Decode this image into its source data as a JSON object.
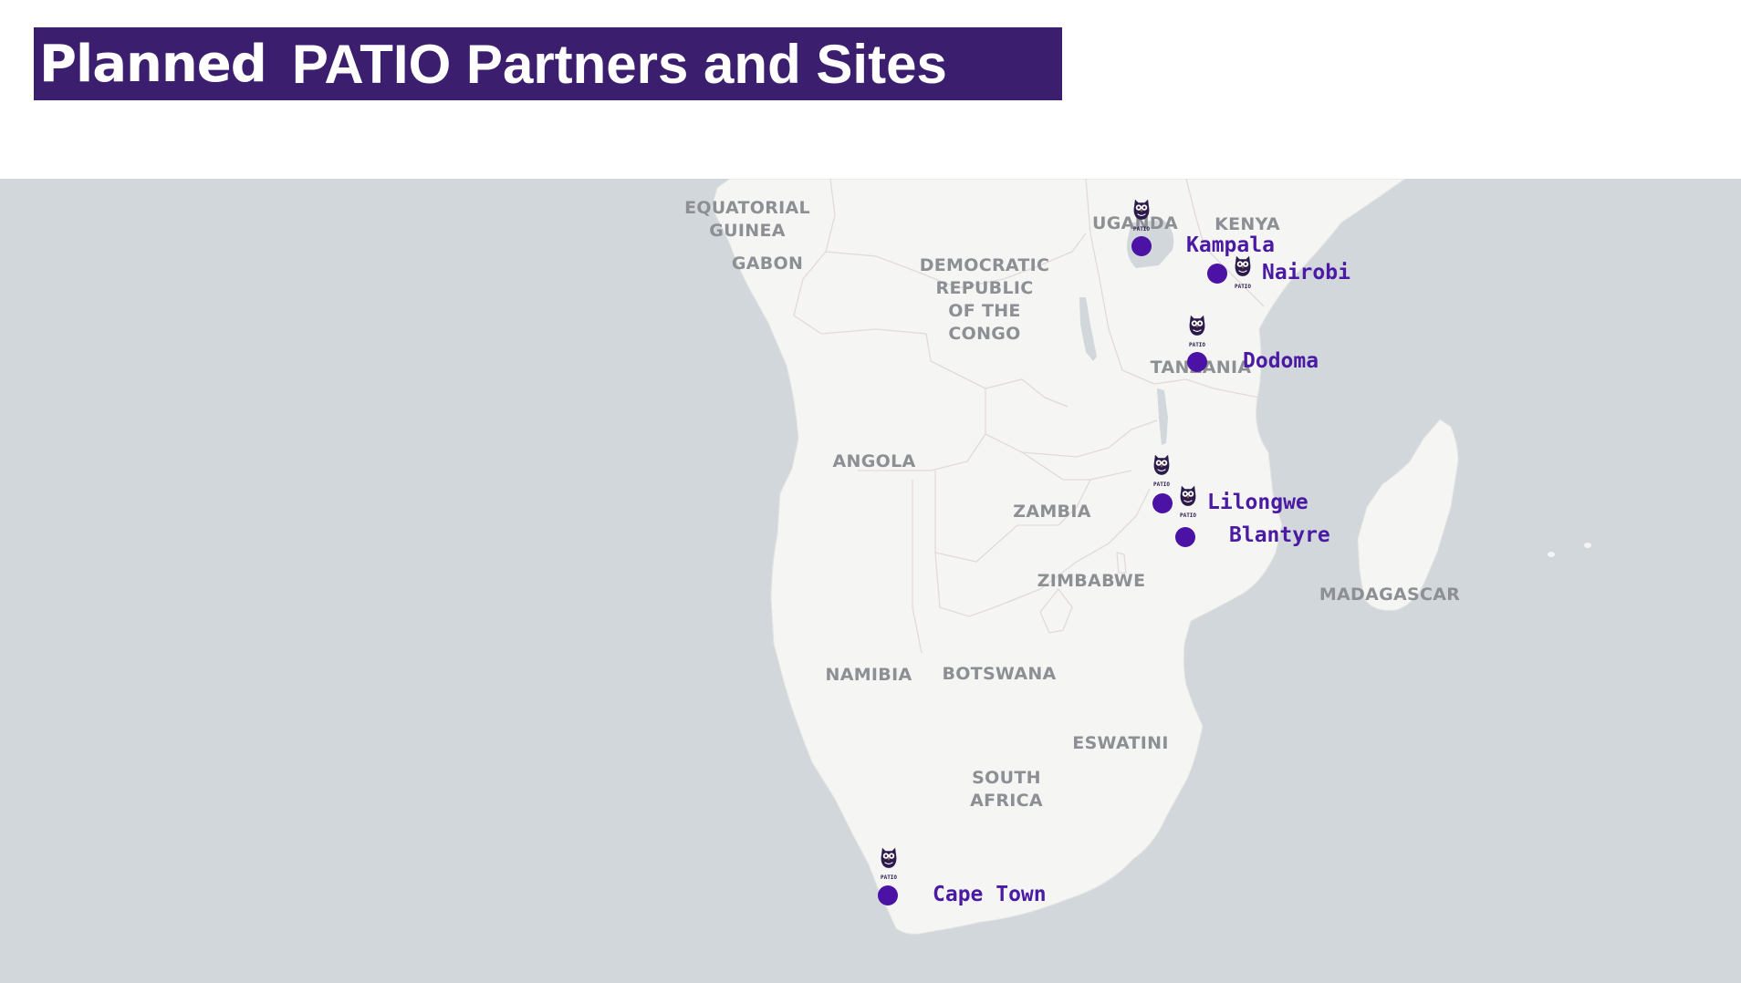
{
  "header": {
    "title_strong": "Planned",
    "title_rest": "PATIO Partners and Sites"
  },
  "colors": {
    "title_bar": "#3b1f6e",
    "ocean": "#d2d7db",
    "land": "#f5f5f4",
    "marker": "#4b12a5",
    "label": "#4b1aa3"
  },
  "map": {
    "countries": {
      "equatorial_guinea": [
        "EQUATORIAL",
        "GUINEA"
      ],
      "gabon": "GABON",
      "drc": [
        "DEMOCRATIC",
        "REPUBLIC",
        "OF THE",
        "CONGO"
      ],
      "uganda": "UGANDA",
      "kenya": "KENYA",
      "tanzania": "TANZANIA",
      "angola": "ANGOLA",
      "zambia": "ZAMBIA",
      "zimbabwe": "ZIMBABWE",
      "madagascar": "MADAGASCAR",
      "namibia": "NAMIBIA",
      "botswana": "BOTSWANA",
      "eswatini": "ESWATINI",
      "south_africa": [
        "SOUTH",
        "AFRICA"
      ]
    },
    "sites": {
      "kampala": "Kampala",
      "nairobi": "Nairobi",
      "dodoma": "Dodoma",
      "lilongwe": "Lilongwe",
      "blantyre": "Blantyre",
      "cape_town": "Cape Town"
    },
    "logo_text": "PATIO",
    "logo_icon": "owl-icon"
  }
}
